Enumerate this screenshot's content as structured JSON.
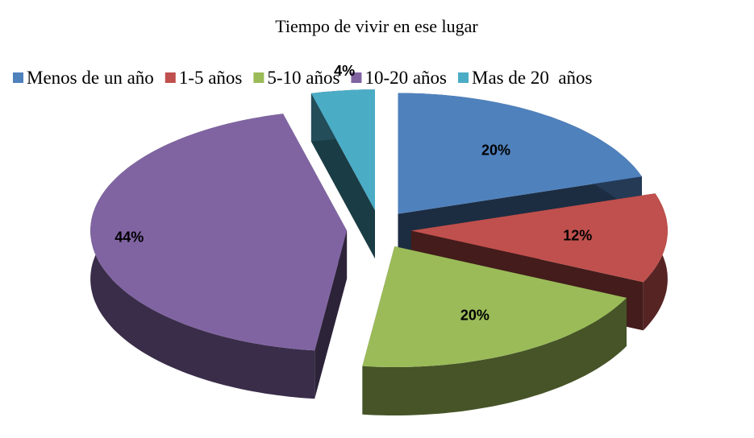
{
  "chart_data": {
    "type": "pie",
    "title": "Tiempo de vivir en ese lugar",
    "categories": [
      "Menos de un año",
      "1-5 años",
      "5-10 años",
      "10-20 años",
      "Mas de 20  años"
    ],
    "values": [
      20,
      12,
      20,
      44,
      4
    ],
    "value_labels": [
      "20%",
      "12%",
      "20%",
      "44%",
      "4%"
    ],
    "colors": [
      "#4f81bd",
      "#c0504d",
      "#9bbb59",
      "#8064a2",
      "#4bacc6"
    ],
    "legend": "top"
  }
}
